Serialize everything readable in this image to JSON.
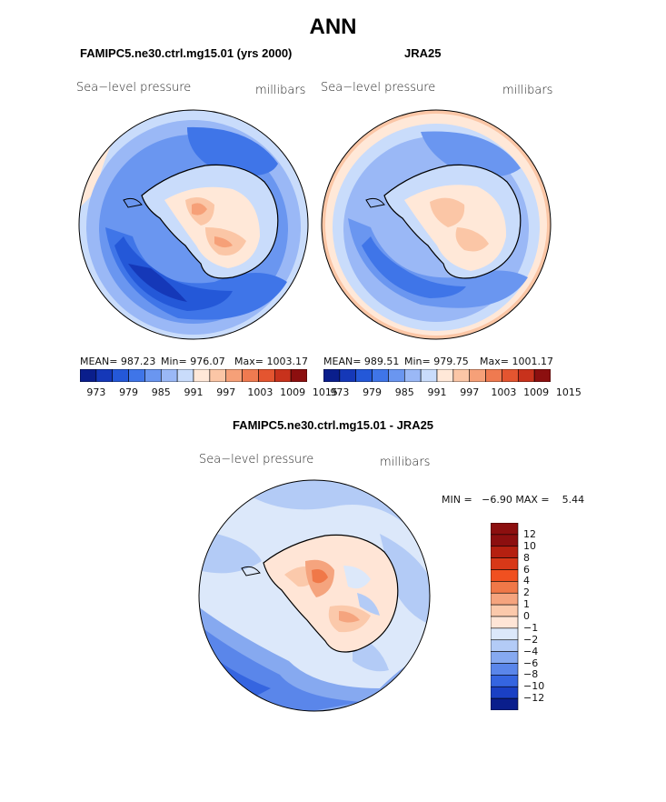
{
  "title": "ANN",
  "top_left": {
    "title": "FAMIPC5.ne30.ctrl.mg15.01 (yrs 2000)",
    "variable": "Sea−level pressure",
    "units": "millibars",
    "mean_label": "MEAN= 987.23",
    "min_label": "Min= 976.07",
    "max_label": "Max= 1003.17",
    "mean": 987.23,
    "min": 976.07,
    "max": 1003.17
  },
  "top_right": {
    "title": "JRA25",
    "variable": "Sea−level pressure",
    "units": "millibars",
    "mean_label": "MEAN= 989.51",
    "min_label": "Min= 979.75",
    "max_label": "Max= 1001.17",
    "mean": 989.51,
    "min": 979.75,
    "max": 1001.17
  },
  "top_colorbar": {
    "ticks": [
      "973",
      "979",
      "985",
      "991",
      "997",
      "1003",
      "1009",
      "1015"
    ],
    "colors": [
      "#0a1e8c",
      "#1538b8",
      "#2458d8",
      "#3f75e8",
      "#6a96f0",
      "#9ab8f6",
      "#c9dcfb",
      "#ffe8d8",
      "#fbc6a6",
      "#f6a078",
      "#ef7a50",
      "#e45530",
      "#c8321c",
      "#8c0f0f"
    ]
  },
  "bottom": {
    "title": "FAMIPC5.ne30.ctrl.mg15.01 - JRA25",
    "variable": "Sea−level pressure",
    "units": "millibars",
    "minmax_label": "MIN =   −6.90 MAX =    5.44",
    "min": -6.9,
    "max": 5.44
  },
  "diff_colorbar": {
    "labels": [
      "12",
      "10",
      "8",
      "6",
      "4",
      "2",
      "1",
      "0",
      "−1",
      "−2",
      "−4",
      "−6",
      "−8",
      "−10",
      "−12"
    ],
    "colors": [
      "#8c0f0f",
      "#b52010",
      "#d83818",
      "#f05020",
      "#f07848",
      "#f5a47e",
      "#fbc9ab",
      "#ffe5d6",
      "#dce8fa",
      "#b3cbf6",
      "#86a9f0",
      "#5a86ea",
      "#3565e0",
      "#1a40c4",
      "#0a1e8c"
    ]
  }
}
